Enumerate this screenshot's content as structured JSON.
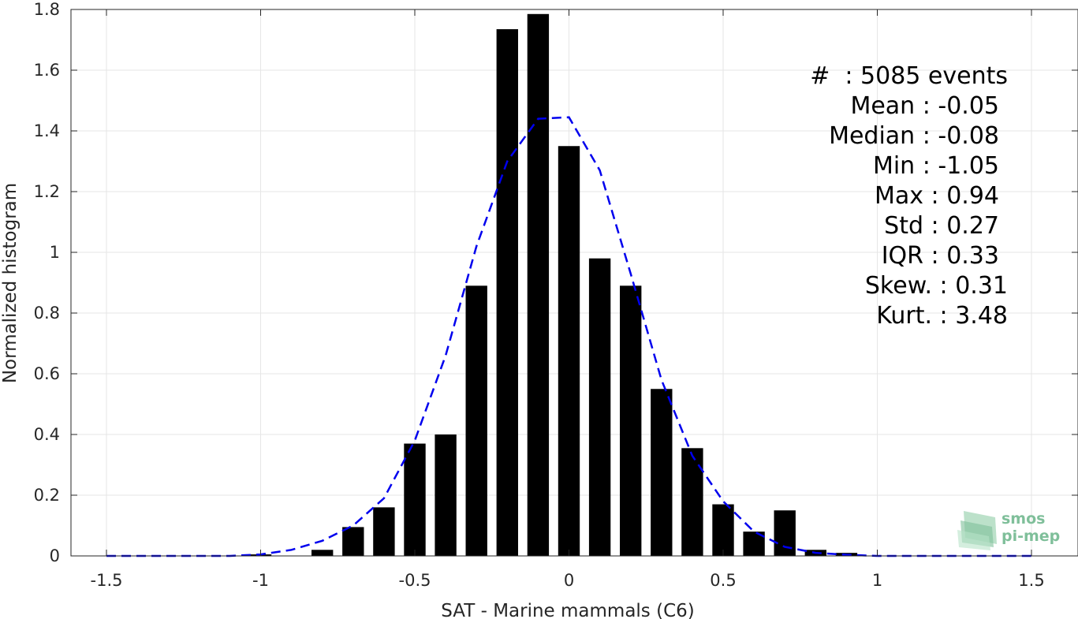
{
  "chart_data": {
    "type": "bar",
    "title": "",
    "xlabel": "SAT - Marine mammals (C6)",
    "ylabel": "Normalized histogram",
    "xlim": [
      -1.5,
      1.5
    ],
    "ylim": [
      0,
      1.8
    ],
    "grid": true,
    "xticks": [
      -1.5,
      -1,
      -0.5,
      0,
      0.5,
      1,
      1.5
    ],
    "xtick_labels": [
      "-1.5",
      "-1",
      "-0.5",
      "0",
      "0.5",
      "1",
      "1.5"
    ],
    "yticks": [
      0,
      0.2,
      0.4,
      0.6,
      0.8,
      1,
      1.2,
      1.4,
      1.6,
      1.8
    ],
    "ytick_labels": [
      "0",
      "0.2",
      "0.4",
      "0.6",
      "0.8",
      "1",
      "1.2",
      "1.4",
      "1.6",
      "1.8"
    ],
    "bar_color": "#000000",
    "bar_width": 0.07,
    "bars": {
      "x": [
        -1.0,
        -0.8,
        -0.7,
        -0.6,
        -0.5,
        -0.4,
        -0.3,
        -0.2,
        -0.1,
        0.0,
        0.1,
        0.2,
        0.3,
        0.4,
        0.5,
        0.6,
        0.7,
        0.8,
        0.9
      ],
      "values": [
        0.005,
        0.02,
        0.095,
        0.16,
        0.37,
        0.4,
        0.89,
        1.735,
        1.785,
        1.35,
        0.98,
        0.89,
        0.55,
        0.355,
        0.17,
        0.08,
        0.15,
        0.02,
        0.01
      ]
    },
    "fit_curve": {
      "style": "dashed",
      "color": "#0000ee",
      "x": [
        -1.5,
        -1.4,
        -1.3,
        -1.2,
        -1.1,
        -1.0,
        -0.9,
        -0.8,
        -0.7,
        -0.6,
        -0.5,
        -0.4,
        -0.3,
        -0.2,
        -0.1,
        0.0,
        0.1,
        0.2,
        0.3,
        0.4,
        0.5,
        0.6,
        0.7,
        0.8,
        0.9,
        1.0,
        1.1,
        1.2,
        1.3,
        1.4,
        1.5
      ],
      "y": [
        0,
        0,
        0,
        0,
        0,
        0.005,
        0.02,
        0.05,
        0.1,
        0.19,
        0.38,
        0.66,
        1.02,
        1.3,
        1.44,
        1.445,
        1.27,
        0.93,
        0.58,
        0.33,
        0.18,
        0.08,
        0.03,
        0.01,
        0.004,
        0,
        0,
        0,
        0,
        0,
        0
      ]
    }
  },
  "stats": [
    {
      "label": "#  : 5085 events"
    },
    {
      "label": "Mean : -0.05"
    },
    {
      "label": "Median : -0.08"
    },
    {
      "label": "Min : -1.05"
    },
    {
      "label": "Max : 0.94"
    },
    {
      "label": "Std : 0.27"
    },
    {
      "label": "IQR : 0.33"
    },
    {
      "label": "Skew. : 0.31"
    },
    {
      "label": "Kurt. : 3.48"
    }
  ],
  "logo": {
    "line1": "smos",
    "line2": "pi-mep",
    "color": "#7fbf9a"
  }
}
